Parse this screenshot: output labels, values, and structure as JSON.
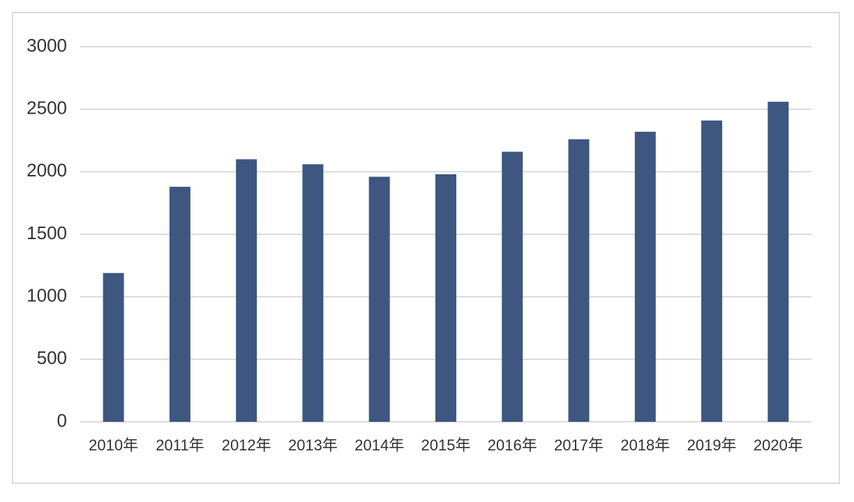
{
  "chart_data": {
    "type": "bar",
    "categories": [
      "2010年",
      "2011年",
      "2012年",
      "2013年",
      "2014年",
      "2015年",
      "2016年",
      "2017年",
      "2018年",
      "2019年",
      "2020年"
    ],
    "values": [
      1190,
      1880,
      2100,
      2060,
      1960,
      1980,
      2160,
      2260,
      2320,
      2410,
      2560
    ],
    "color": "#3d5780",
    "ylim": [
      0,
      3000
    ],
    "yticks": [
      0,
      500,
      1000,
      1500,
      2000,
      2500,
      3000
    ],
    "grid": true
  }
}
